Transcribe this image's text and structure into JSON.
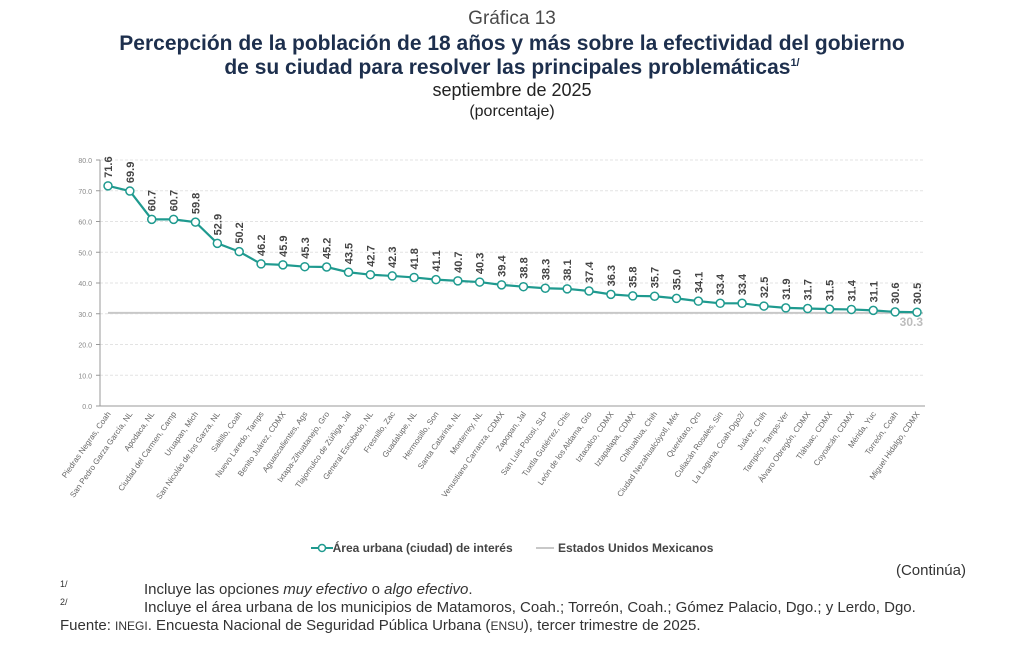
{
  "header": {
    "chart_number": "Gráfica 13",
    "title_line1": "Percepción de la población de 18 años y más sobre la efectividad del gobierno",
    "title_line2": "de su ciudad para resolver las principales problemáticas",
    "title_footnote_mark": "1/",
    "subtitle": "septiembre de 2025",
    "units": "(porcentaje)"
  },
  "chart_data": {
    "type": "line",
    "title": "Percepción de la población de 18 años y más sobre la efectividad del gobierno de su ciudad para resolver las principales problemáticas",
    "xlabel": "",
    "ylabel": "",
    "ylim": [
      0,
      80
    ],
    "yticks": [
      "0.0",
      "10.0",
      "20.0",
      "30.0",
      "40.0",
      "50.0",
      "60.0",
      "70.0",
      "80.0"
    ],
    "grid": true,
    "legend_position": "bottom-center",
    "categories": [
      "Piedras Negras, Coah",
      "San Pedro Garza García, NL",
      "Apodaca, NL",
      "Ciudad del Carmen, Camp",
      "Uruapan, Mich",
      "San Nicolás de los Garza, NL",
      "Saltillo, Coah",
      "Nuevo Laredo, Tamps",
      "Benito Juárez, CDMX",
      "Aguascalientes, Ags",
      "Ixtapa-Zihuatanejo, Gro",
      "Tlajomulco de Zúñiga, Jal",
      "General Escobedo, NL",
      "Fresnillo, Zac",
      "Guadalupe, NL",
      "Hermosillo, Son",
      "Santa Catarina, NL",
      "Monterrey, NL",
      "Venustiano Carranza, CDMX",
      "Zapopan, Jal",
      "San Luis Potosí, SLP",
      "Tuxtla Gutiérrez, Chis",
      "León de los Aldama, Gto",
      "Iztacalco, CDMX",
      "Iztapalapa, CDMX",
      "Chihuahua, Chih",
      "Ciudad Nezahualcóyotl, Méx",
      "Querétaro, Qro",
      "Culiacán Rosales, Sin",
      "La Laguna, Coah-Dgo2/",
      "Juárez, Chih",
      "Tampico, Tamps-Ver",
      "Álvaro Obregón, CDMX",
      "Tláhuac, CDMX",
      "Coyoacán, CDMX",
      "Mérida, Yuc",
      "Torreón, Coah",
      "Miguel Hidalgo, CDMX"
    ],
    "series": [
      {
        "name": "Área urbana (ciudad) de interés",
        "color": "#1f9a8f",
        "values": [
          71.6,
          69.9,
          60.7,
          60.7,
          59.8,
          52.9,
          50.2,
          46.2,
          45.9,
          45.3,
          45.2,
          43.5,
          42.7,
          42.3,
          41.8,
          41.1,
          40.7,
          40.3,
          39.4,
          38.8,
          38.3,
          38.1,
          37.4,
          36.3,
          35.8,
          35.7,
          35.0,
          34.1,
          33.4,
          33.4,
          32.5,
          31.9,
          31.7,
          31.5,
          31.4,
          31.1,
          30.6,
          30.5
        ]
      },
      {
        "name": "Estados Unidos Mexicanos",
        "color": "#c8c8c8",
        "value": 30.3,
        "label": "30.3"
      }
    ]
  },
  "footer": {
    "continua": "(Continúa)",
    "notes": [
      {
        "mark": "1/",
        "pre": "Incluye las opciones ",
        "em1": "muy efectivo",
        "mid": " o ",
        "em2": "algo efectivo",
        "post": "."
      },
      {
        "mark": "2/",
        "text": "Incluye el área urbana de los municipios de Matamoros, Coah.; Torreón, Coah.; Gómez Palacio, Dgo.; y Lerdo, Dgo."
      }
    ],
    "source_label": "Fuente:",
    "source_org": "INEGI",
    "source_text_a": ". Encuesta Nacional de Seguridad Pública Urbana (",
    "source_abbr": "ENSU",
    "source_text_b": "), tercer trimestre de 2025."
  }
}
